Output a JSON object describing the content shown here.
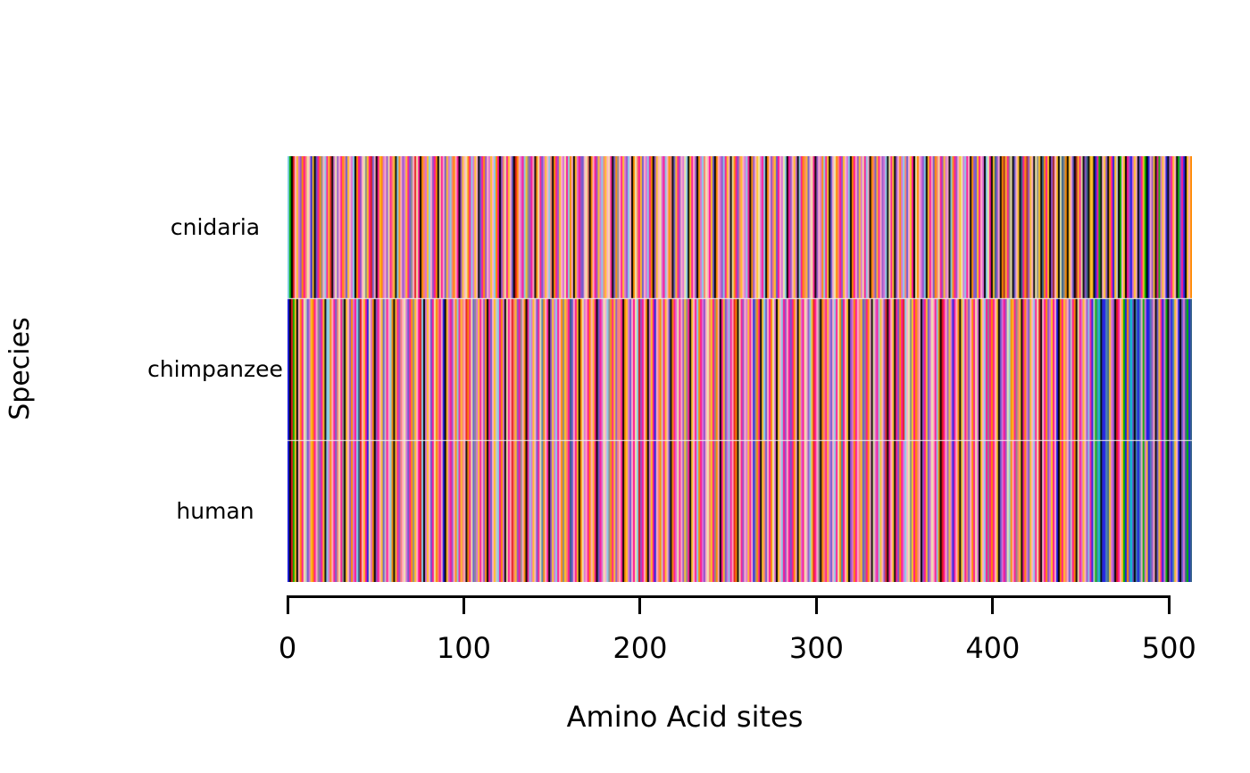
{
  "figure": {
    "background": "#FFFFFF",
    "axis_color": "#000000"
  },
  "chart_data": {
    "type": "heatmap",
    "title": "",
    "xlabel": "Amino Acid sites",
    "ylabel": "Species",
    "species": [
      "cnidaria",
      "chimpanzee",
      "human"
    ],
    "n_sites": 513,
    "x_ticks": [
      0,
      100,
      200,
      300,
      400,
      500
    ],
    "xlim": [
      0,
      513
    ],
    "legend": "none",
    "grid": false,
    "row_separator_color": "#F2F2F2",
    "palette": {
      "0": "#E41A1C",
      "1": "#FF8C00",
      "2": "#FFC125",
      "3": "#EEE8AA",
      "4": "#00B300",
      "5": "#00CED1",
      "6": "#87CEEB",
      "7": "#1F1FE0",
      "8": "#6A5ACD",
      "9": "#9254C8",
      "a": "#DA70D6",
      "b": "#FF1493",
      "c": "#FFAEC9",
      "d": "#FA8072",
      "e": "#000000",
      "f": "#8A8A8A",
      "g": "#C8C8C8",
      "h": "#36648B",
      "i": "#A52A2A",
      "j": "#4682B4"
    },
    "sequences": {
      "cnidaria": "64e0c2a91bd3c72e8b1fc6b20ea39cb1d82ca6e1b9c3f2b08ceb21ac93bd2e61c9a2b8fc03be1da26c9b1e3bc82a6d1cbe92c31b6a2ce8b19ca2c61be9d3b2c8e01cab62f9bce13b8a2c6de1b92ca3b61ce2ab98c3de1cb92a6d2c3be81fcb2a96ce13db28ca6b1e92c3ab6c1de82b9ca36e2bc9e1a6d3cb28e1ca96b2ce31b8d2ca6be19c23ab6e1c9d28bca36eb9c2ae6b1d28c3be9ca16b2e8c31db92ca6e1bc92a3b6ce1d82bc9a6e3b2e9c1a6d8c2be31ca96e2bc81d3b92ace61b9c23a6bce1982bcae63be2h9ce1i2bf3e8c2ehb1i92ce3f2eh1b2e9ic2e3hf1e2c8ei2b3e9he22e7b4ec29e1b72ge4c2eb97a2ce8b24e7c92eb4a2c7e9b2ce48b7e2c1",
      "chimpanzee": "7e042ec1b3g8a21bcf9b2e661cb8d3bfe2c91ab6h0c2b73a1e9bc28gbc61e2b9dc3a8b1f2cb06ea2c8b31dbc7e2ab9c16b2dc01b38fa2bc91eb8c2g6b1ae3bc0d29bfc1eb6a2c8b3j1cbe92a6bc1f2dbh8cb2e13acb1c2be8ba3c6f1b29ddbe12a8cb3609bc1ea2b7cd1gb2c8e1ba3bc92fbe2cb61ba9c3d2bf1ceb28a6bc01e3b9ca2bc7f1be268cb13ae2c6b9cb8b1ce2ab3c9620bcfe1db2a8c6b31jbc2e9a1bcd28fb1ce3ab62c90ebc2eb81b06c3f2b1dce9b28a3cb61e0bc92a7bc1e2gbd8c1b3ae2c6bfb1bc2e8ab93612bfd2eb1a82c6b30ecb19a2bc7e1b2dc8gb1e3ba2c96b7g4j5e77jh2a9e0bc2471858ej7jc4a77j9ce82b7a4e97j2c7e8ah47h",
      "human": "7e042ec1b3g8a21bcf9b2e6a1cb8d3bfe2c91ab6h0c2b73a1e9bc28gbc61e2b9dc3a8b1f2cb06ea2c8b31dbc7e2ab9c16b2dce1b38fa2bc91eb8c2g6b1ae3bc0d29bfc1eb6a2c8b3j1cbe92a6bc1f2dbh8cb2e13acb1c2be8ba3c6f1b29dcbe12a8cb3609bc1ea2b7cd1gb2c8e1ba3bc92fbe2cb61ba9c3d2bf1ceb28a6bc01e3b9ca2bc7f1be2d8cb13ae2c6b9cb8b1ce2ab3c9620bcfe1db2a8c6b31jbc2e9a1bcd28fb1ce3ab62c90ebc2eb81ba6c3f2b1dce9b28a3cb61e0bc92a7bc1e2gbd8c1b3ae2c6bfb1bc2e8ab9361cbfd2eb1a82c6b30ecb19a2bc7e1b2dc8gb1e3ba2c96b7g4j5e77jh2a9e0bc2471858ej7jc4a27j9ce82b7a4e97j2c7e8ah47h"
    }
  }
}
